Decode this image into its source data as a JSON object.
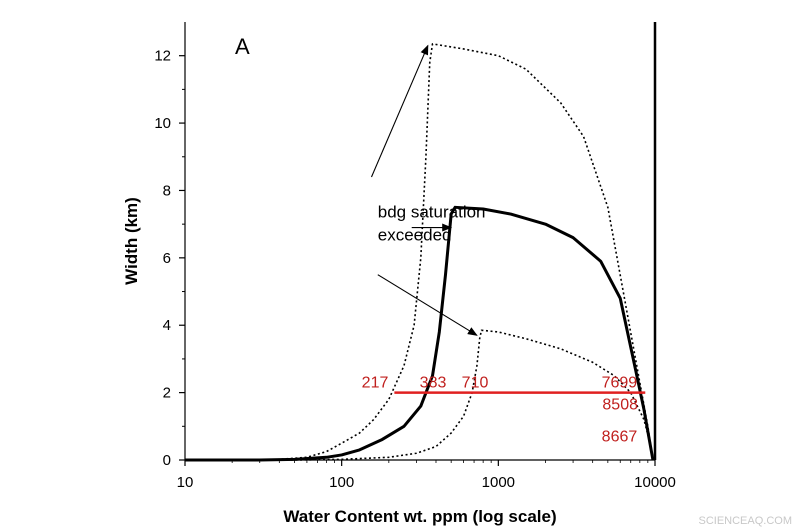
{
  "chart_data": {
    "type": "line",
    "panel_label": "A",
    "xlabel": "Water Content wt. ppm (log scale)",
    "ylabel": "Width (km)",
    "xscale": "log",
    "xlim": [
      10,
      10000
    ],
    "ylim": [
      0,
      13
    ],
    "xticks": [
      10,
      100,
      1000,
      10000
    ],
    "xtick_labels": [
      "10",
      "100",
      "1000",
      "10000"
    ],
    "yticks": [
      0,
      2,
      4,
      6,
      8,
      10,
      12
    ],
    "ytick_labels": [
      "0",
      "2",
      "4",
      "6",
      "8",
      "10",
      "12"
    ],
    "grid": false,
    "legend": "none",
    "series": [
      {
        "style": "dotted",
        "color": "#000000",
        "points": [
          [
            10,
            0
          ],
          [
            20,
            0
          ],
          [
            40,
            0.02
          ],
          [
            60,
            0.08
          ],
          [
            80,
            0.25
          ],
          [
            100,
            0.5
          ],
          [
            130,
            0.8
          ],
          [
            160,
            1.2
          ],
          [
            200,
            1.8
          ],
          [
            250,
            2.8
          ],
          [
            290,
            4.0
          ],
          [
            320,
            6.0
          ],
          [
            345,
            9.0
          ],
          [
            365,
            11.8
          ],
          [
            380,
            12.35
          ],
          [
            600,
            12.2
          ],
          [
            1000,
            12.0
          ],
          [
            1500,
            11.6
          ],
          [
            2500,
            10.6
          ],
          [
            3500,
            9.6
          ],
          [
            5000,
            7.5
          ],
          [
            6500,
            4.6
          ],
          [
            8000,
            2.3
          ],
          [
            9000,
            1.0
          ],
          [
            9700,
            0
          ]
        ]
      },
      {
        "style": "solid",
        "color": "#000000",
        "points": [
          [
            10,
            0
          ],
          [
            30,
            0
          ],
          [
            50,
            0.02
          ],
          [
            80,
            0.08
          ],
          [
            100,
            0.15
          ],
          [
            130,
            0.3
          ],
          [
            180,
            0.6
          ],
          [
            250,
            1.0
          ],
          [
            320,
            1.6
          ],
          [
            380,
            2.5
          ],
          [
            420,
            3.8
          ],
          [
            460,
            5.5
          ],
          [
            500,
            7.3
          ],
          [
            530,
            7.5
          ],
          [
            800,
            7.45
          ],
          [
            1200,
            7.3
          ],
          [
            2000,
            7.0
          ],
          [
            3000,
            6.6
          ],
          [
            4500,
            5.9
          ],
          [
            6000,
            4.8
          ],
          [
            7500,
            2.7
          ],
          [
            8500,
            1.5
          ],
          [
            9200,
            0.6
          ],
          [
            9700,
            0
          ]
        ]
      },
      {
        "style": "dotted",
        "color": "#000000",
        "points": [
          [
            10,
            0
          ],
          [
            50,
            0
          ],
          [
            100,
            0.02
          ],
          [
            200,
            0.08
          ],
          [
            300,
            0.2
          ],
          [
            400,
            0.4
          ],
          [
            500,
            0.8
          ],
          [
            600,
            1.3
          ],
          [
            680,
            2.0
          ],
          [
            730,
            2.8
          ],
          [
            760,
            3.6
          ],
          [
            780,
            3.85
          ],
          [
            1000,
            3.8
          ],
          [
            1500,
            3.6
          ],
          [
            2500,
            3.3
          ],
          [
            4000,
            2.9
          ],
          [
            5500,
            2.5
          ],
          [
            7000,
            2.0
          ],
          [
            8500,
            1.2
          ],
          [
            9300,
            0.5
          ],
          [
            9700,
            0
          ]
        ]
      },
      {
        "style": "solid",
        "color": "#e02020",
        "points": [
          [
            217,
            2
          ],
          [
            8667,
            2
          ]
        ]
      }
    ],
    "annotations": {
      "text_lines": [
        "bdg saturation",
        "exceeded"
      ],
      "text_anchor": [
        170,
        7.2
      ],
      "arrows": [
        {
          "from": [
            155,
            8.4
          ],
          "to": [
            355,
            12.3
          ]
        },
        {
          "from": [
            280,
            6.9
          ],
          "to": [
            500,
            6.9
          ]
        },
        {
          "from": [
            170,
            5.5
          ],
          "to": [
            730,
            3.7
          ]
        }
      ]
    },
    "value_labels": [
      {
        "text": "217",
        "x": 217,
        "y": 2,
        "color": "#c0201e",
        "anchor": "end",
        "dx": -6,
        "dy": -5
      },
      {
        "text": "383",
        "x": 383,
        "y": 2,
        "color": "#c0201e",
        "anchor": "middle",
        "dx": 0,
        "dy": -5
      },
      {
        "text": "710",
        "x": 710,
        "y": 2,
        "color": "#c0201e",
        "anchor": "middle",
        "dx": 0,
        "dy": -5
      },
      {
        "text": "7699",
        "x": 7699,
        "y": 2,
        "color": "#c0201e",
        "anchor": "end",
        "dx": 0,
        "dy": -5
      },
      {
        "text": "8508",
        "x": 8508,
        "y": 1.5,
        "color": "#c0201e",
        "anchor": "end",
        "dx": -6,
        "dy": 0
      },
      {
        "text": "8667",
        "x": 8667,
        "y": 0.55,
        "color": "#c0201e",
        "anchor": "end",
        "dx": -8,
        "dy": 0
      }
    ]
  },
  "watermark": "SCIENCEAQ.COM"
}
